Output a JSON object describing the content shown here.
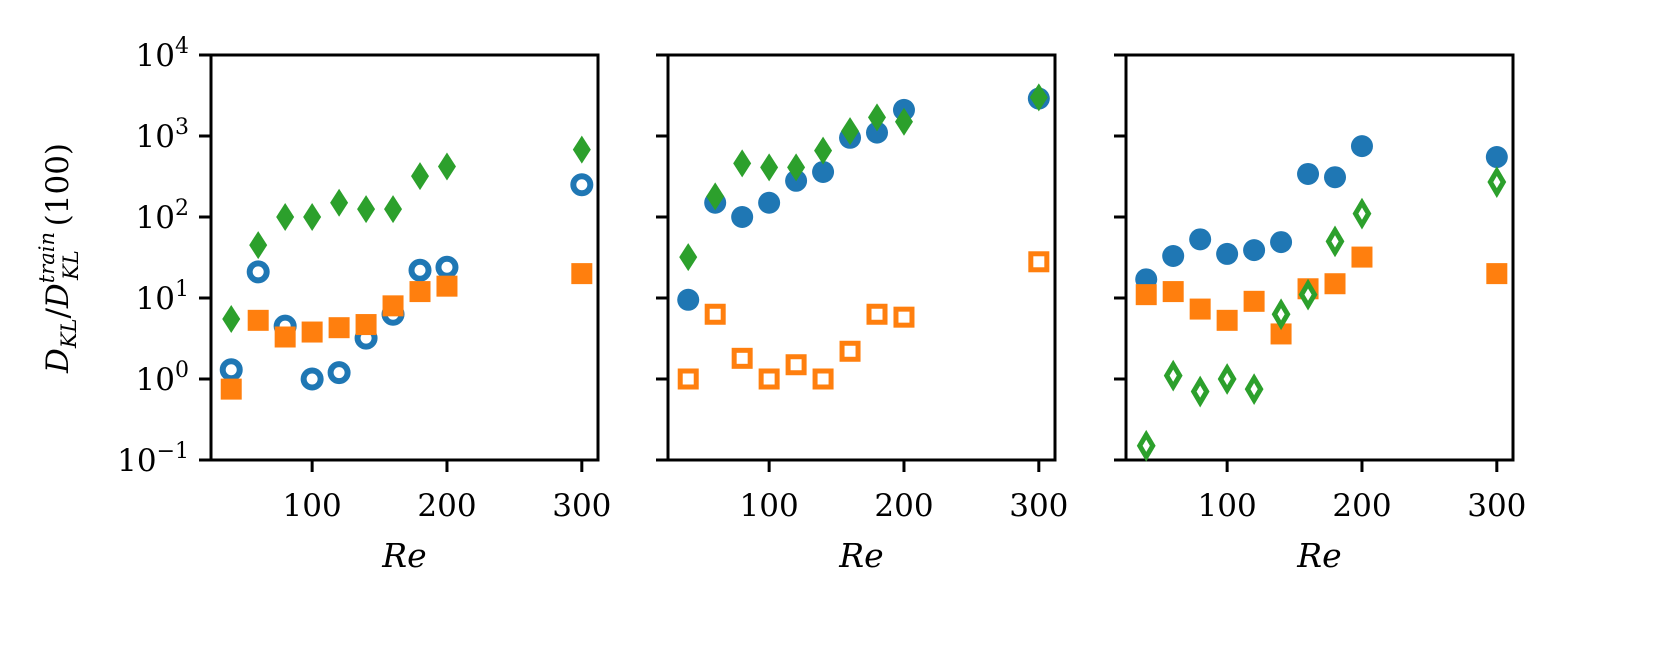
{
  "colors": {
    "blue": "#1f77b4",
    "orange": "#ff7f0e",
    "green": "#2ca02c"
  },
  "chart_data": [
    {
      "type": "scatter",
      "yscale": "log",
      "ylim": [
        0.1,
        10000
      ],
      "xlim": [
        25,
        312
      ],
      "xticks": [
        100,
        200,
        300
      ],
      "xtick_labels": [
        "100",
        "200",
        "300"
      ],
      "ytick_labels": [
        "10",
        "10",
        "10",
        "10",
        "10",
        "10"
      ],
      "ytick_exponents": [
        "−1",
        "0",
        "1",
        "2",
        "3",
        "4"
      ],
      "xlabel": "Re",
      "ylabel": "D_KL / D_KL^train(100)",
      "series": [
        {
          "color": "#1f77b4",
          "marker": "circle",
          "fill": "hollow",
          "x": [
            40,
            60,
            80,
            100,
            120,
            140,
            160,
            180,
            200,
            300
          ],
          "y": [
            1.3,
            21,
            4.5,
            1.0,
            1.2,
            3.2,
            6.3,
            22,
            24,
            250
          ]
        },
        {
          "color": "#ff7f0e",
          "marker": "square",
          "fill": "filled",
          "x": [
            40,
            60,
            80,
            100,
            120,
            140,
            160,
            180,
            200,
            300
          ],
          "y": [
            0.75,
            5.3,
            3.3,
            3.8,
            4.3,
            4.7,
            8,
            12,
            14,
            20
          ]
        },
        {
          "color": "#2ca02c",
          "marker": "diamond",
          "fill": "filled",
          "x": [
            40,
            60,
            80,
            100,
            120,
            140,
            160,
            180,
            200,
            300
          ],
          "y": [
            5.5,
            45,
            100,
            100,
            150,
            125,
            125,
            320,
            420,
            680
          ]
        }
      ]
    },
    {
      "type": "scatter",
      "yscale": "log",
      "ylim": [
        0.1,
        10000
      ],
      "xlim": [
        25,
        312
      ],
      "xticks": [
        100,
        200,
        300
      ],
      "xtick_labels": [
        "100",
        "200",
        "300"
      ],
      "xlabel": "Re",
      "series": [
        {
          "color": "#1f77b4",
          "marker": "circle",
          "fill": "filled",
          "x": [
            40,
            60,
            80,
            100,
            120,
            140,
            160,
            180,
            200,
            300
          ],
          "y": [
            9.5,
            150,
            100,
            150,
            280,
            360,
            950,
            1100,
            2100,
            2900
          ]
        },
        {
          "color": "#ff7f0e",
          "marker": "square",
          "fill": "hollow",
          "x": [
            40,
            60,
            80,
            100,
            120,
            140,
            160,
            180,
            200,
            300
          ],
          "y": [
            1.0,
            6.3,
            1.8,
            1.0,
            1.5,
            1.0,
            2.2,
            6.3,
            5.8,
            28
          ]
        },
        {
          "color": "#2ca02c",
          "marker": "diamond",
          "fill": "filled",
          "x": [
            40,
            60,
            80,
            100,
            120,
            140,
            160,
            180,
            200,
            300
          ],
          "y": [
            32,
            180,
            460,
            410,
            410,
            660,
            1150,
            1700,
            1500,
            3000
          ]
        }
      ]
    },
    {
      "type": "scatter",
      "yscale": "log",
      "ylim": [
        0.1,
        10000
      ],
      "xlim": [
        25,
        312
      ],
      "xticks": [
        100,
        200,
        300
      ],
      "xtick_labels": [
        "100",
        "200",
        "300"
      ],
      "xlabel": "Re",
      "series": [
        {
          "color": "#1f77b4",
          "marker": "circle",
          "fill": "filled",
          "x": [
            40,
            60,
            80,
            100,
            120,
            140,
            160,
            180,
            200,
            300
          ],
          "y": [
            17,
            33,
            53,
            35,
            39,
            49,
            340,
            310,
            750,
            550
          ]
        },
        {
          "color": "#ff7f0e",
          "marker": "square",
          "fill": "filled",
          "x": [
            40,
            60,
            80,
            100,
            120,
            140,
            160,
            180,
            200,
            300
          ],
          "y": [
            11,
            12,
            7.3,
            5.3,
            9.1,
            3.6,
            13,
            15,
            32,
            20
          ]
        },
        {
          "color": "#2ca02c",
          "marker": "diamond",
          "fill": "hollow",
          "x": [
            40,
            60,
            80,
            100,
            120,
            140,
            160,
            180,
            200,
            300
          ],
          "y": [
            0.15,
            1.1,
            0.7,
            1.0,
            0.75,
            6.3,
            11,
            50,
            110,
            270
          ]
        }
      ]
    }
  ]
}
